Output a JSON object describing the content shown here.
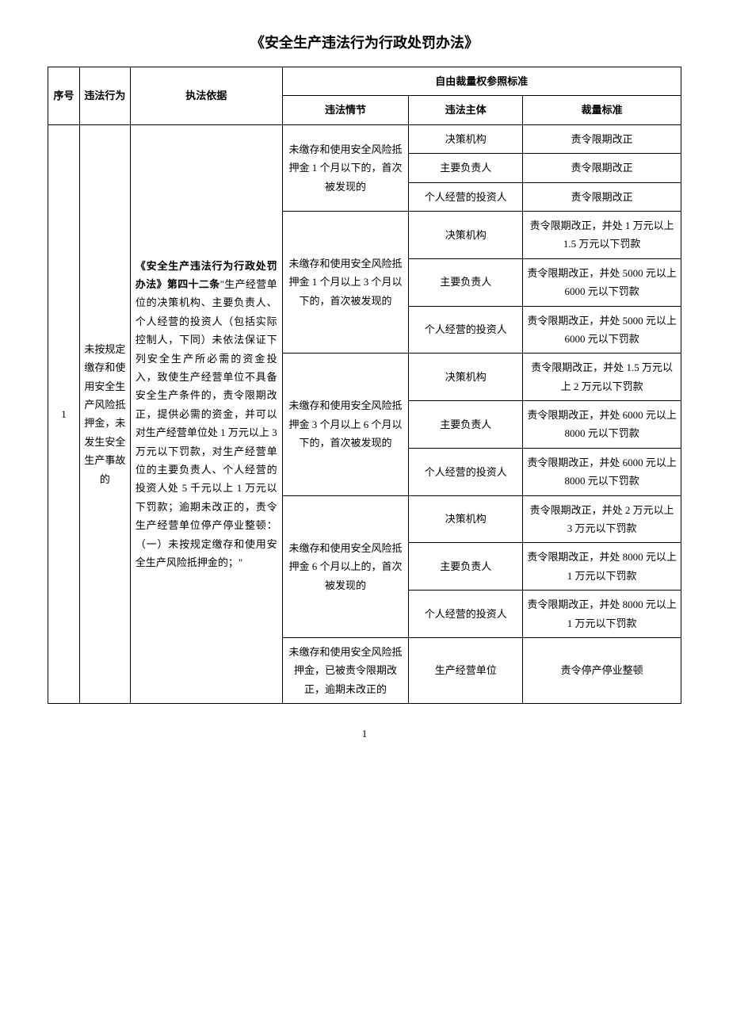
{
  "title": "《安全生产违法行为行政处罚办法》",
  "header": {
    "seq": "序号",
    "act": "违法行为",
    "basis": "执法依据",
    "group": "自由裁量权参照标准",
    "circumstance": "违法情节",
    "subject": "违法主体",
    "standard": "裁量标准"
  },
  "row": {
    "seq": "1",
    "act": "未按规定缴存和使用安全生产风险抵押金，未发生安全生产事故的",
    "basis_bold": "《安全生产违法行为行政处罚办法》第四十二条",
    "basis_rest": "\"生产经营单位的决策机构、主要负责人、个人经营的投资人（包括实际控制人，下同）未依法保证下列安全生产所必需的资金投入，致使生产经营单位不具备安全生产条件的，责令限期改正，提供必需的资金，并可以对生产经营单位处 1 万元以上 3 万元以下罚款，对生产经营单位的主要负责人、个人经营的投资人处 5 千元以上 1 万元以下罚款；逾期未改正的，责令生产经营单位停产停业整顿：（一）未按规定缴存和使用安全生产风险抵押金的；\""
  },
  "circ": {
    "c1": "未缴存和使用安全风险抵押金 1 个月以下的，首次被发现的",
    "c2": "未缴存和使用安全风险抵押金 1 个月以上 3 个月以下的，首次被发现的",
    "c3": "未缴存和使用安全风险抵押金 3 个月以上 6 个月以下的，首次被发现的",
    "c4": "未缴存和使用安全风险抵押金 6 个月以上的，首次被发现的",
    "c5": "未缴存和使用安全风险抵押金，已被责令限期改正，逾期未改正的"
  },
  "subj": {
    "a": "决策机构",
    "b": "主要负责人",
    "c": "个人经营的投资人",
    "d": "生产经营单位"
  },
  "std": {
    "s1a": "责令限期改正",
    "s1b": "责令限期改正",
    "s1c": "责令限期改正",
    "s2a": "责令限期改正，并处 1 万元以上 1.5 万元以下罚款",
    "s2b": "责令限期改正，并处 5000 元以上 6000 元以下罚款",
    "s2c": "责令限期改正，并处 5000 元以上 6000 元以下罚款",
    "s3a": "责令限期改正，并处 1.5 万元以上 2 万元以下罚款",
    "s3b": "责令限期改正，并处 6000 元以上 8000 元以下罚款",
    "s3c": "责令限期改正，并处 6000 元以上 8000 元以下罚款",
    "s4a": "责令限期改正，并处 2 万元以上 3 万元以下罚款",
    "s4b": "责令限期改正，并处 8000 元以上 1 万元以下罚款",
    "s4c": "责令限期改正，并处 8000 元以上 1 万元以下罚款",
    "s5": "责令停产停业整顿"
  },
  "page_number": "1"
}
